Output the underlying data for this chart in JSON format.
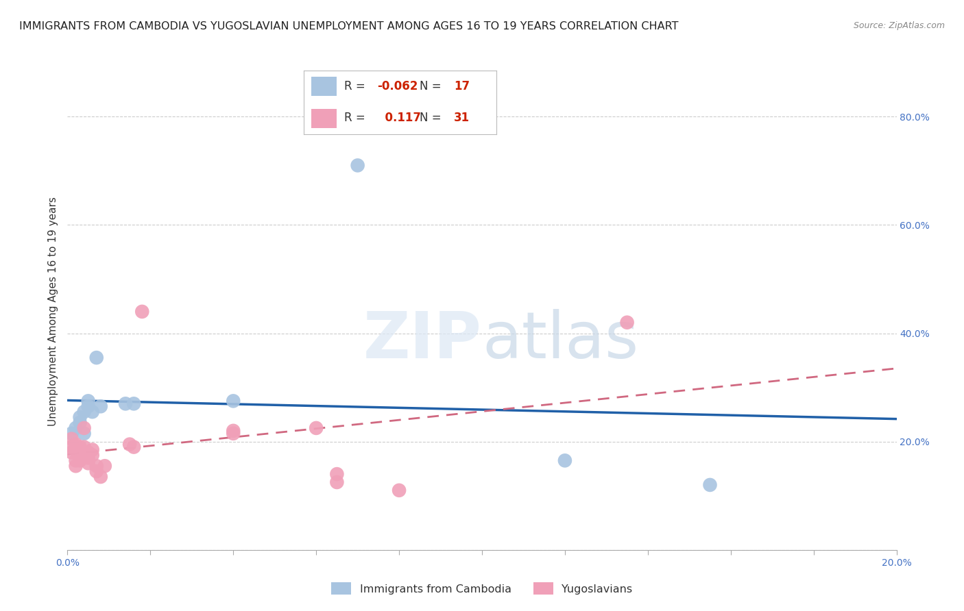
{
  "title": "IMMIGRANTS FROM CAMBODIA VS YUGOSLAVIAN UNEMPLOYMENT AMONG AGES 16 TO 19 YEARS CORRELATION CHART",
  "source": "Source: ZipAtlas.com",
  "ylabel": "Unemployment Among Ages 16 to 19 years",
  "xlim": [
    0.0,
    0.2
  ],
  "ylim": [
    0.0,
    0.88
  ],
  "ytick_vals": [
    0.0,
    0.2,
    0.4,
    0.6,
    0.8
  ],
  "right_ytick_labels": [
    "",
    "20.0%",
    "40.0%",
    "60.0%",
    "80.0%"
  ],
  "xtick_vals": [
    0.0,
    0.02,
    0.04,
    0.06,
    0.08,
    0.1,
    0.12,
    0.14,
    0.16,
    0.18,
    0.2
  ],
  "xtick_labels": [
    "0.0%",
    "",
    "",
    "",
    "",
    "",
    "",
    "",
    "",
    "",
    "20.0%"
  ],
  "cambodia_R": "-0.062",
  "cambodia_N": "17",
  "yugoslavian_R": "0.117",
  "yugoslavian_N": "31",
  "cambodia_color": "#a8c4e0",
  "yugoslavian_color": "#f0a0b8",
  "cambodia_line_color": "#2060a8",
  "yugoslavian_line_color": "#d06880",
  "cambodia_points": [
    [
      0.001,
      0.215
    ],
    [
      0.002,
      0.225
    ],
    [
      0.003,
      0.245
    ],
    [
      0.003,
      0.235
    ],
    [
      0.004,
      0.215
    ],
    [
      0.004,
      0.255
    ],
    [
      0.005,
      0.275
    ],
    [
      0.005,
      0.265
    ],
    [
      0.006,
      0.255
    ],
    [
      0.007,
      0.355
    ],
    [
      0.008,
      0.265
    ],
    [
      0.014,
      0.27
    ],
    [
      0.016,
      0.27
    ],
    [
      0.04,
      0.275
    ],
    [
      0.07,
      0.71
    ],
    [
      0.12,
      0.165
    ],
    [
      0.155,
      0.12
    ]
  ],
  "yugoslavian_points": [
    [
      0.001,
      0.205
    ],
    [
      0.001,
      0.19
    ],
    [
      0.001,
      0.18
    ],
    [
      0.002,
      0.195
    ],
    [
      0.002,
      0.185
    ],
    [
      0.002,
      0.165
    ],
    [
      0.002,
      0.155
    ],
    [
      0.003,
      0.175
    ],
    [
      0.003,
      0.165
    ],
    [
      0.003,
      0.19
    ],
    [
      0.004,
      0.19
    ],
    [
      0.004,
      0.225
    ],
    [
      0.005,
      0.18
    ],
    [
      0.005,
      0.17
    ],
    [
      0.005,
      0.16
    ],
    [
      0.006,
      0.175
    ],
    [
      0.006,
      0.185
    ],
    [
      0.007,
      0.155
    ],
    [
      0.007,
      0.145
    ],
    [
      0.008,
      0.135
    ],
    [
      0.009,
      0.155
    ],
    [
      0.015,
      0.195
    ],
    [
      0.016,
      0.19
    ],
    [
      0.018,
      0.44
    ],
    [
      0.04,
      0.22
    ],
    [
      0.04,
      0.215
    ],
    [
      0.06,
      0.225
    ],
    [
      0.065,
      0.14
    ],
    [
      0.065,
      0.125
    ],
    [
      0.08,
      0.11
    ],
    [
      0.135,
      0.42
    ]
  ],
  "grid_color": "#cccccc",
  "bg_color": "#ffffff",
  "title_fontsize": 11.5,
  "axis_label_fontsize": 11,
  "tick_fontsize": 10,
  "legend_fontsize": 11.5,
  "watermark_color": "#dce8f5",
  "watermark_alpha": 0.7
}
